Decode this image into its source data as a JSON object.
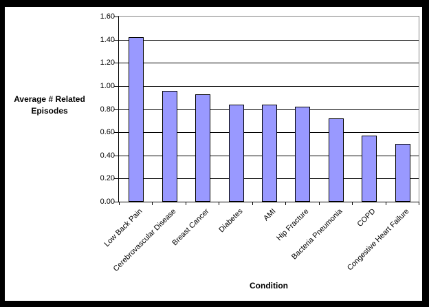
{
  "chart_data": {
    "type": "bar",
    "title": "",
    "categories": [
      "Low Back Pain",
      "Cerebrovascular Disease",
      "Breast Cancer",
      "Diabetes",
      "AMI",
      "Hip Fracture",
      "Bacteria Pneumonia",
      "COPD",
      "Congestive Heart Failure"
    ],
    "values": [
      1.42,
      0.96,
      0.93,
      0.84,
      0.84,
      0.82,
      0.72,
      0.57,
      0.5
    ],
    "xlabel": "Condition",
    "ylabel": "Average # Related Episodes",
    "ylim": [
      0,
      1.6
    ],
    "ytick_step": 0.2,
    "yticks": [
      "0.00",
      "0.20",
      "0.40",
      "0.60",
      "0.80",
      "1.00",
      "1.20",
      "1.40",
      "1.60"
    ],
    "grid": true,
    "legend_position": "none",
    "colors": {
      "bar_fill": "#9999FF",
      "bar_border": "#000000",
      "gridline": "#000000",
      "plot_border": "#808080",
      "axis_line": "#000000",
      "background": "#FFFFFF",
      "frame": "#000000",
      "text": "#000000"
    }
  }
}
